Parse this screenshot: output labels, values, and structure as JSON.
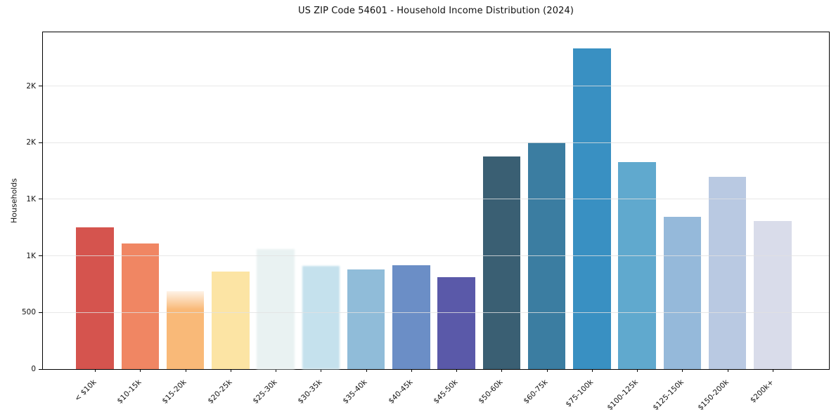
{
  "figure": {
    "title": "US ZIP Code 54601 - Household Income Distribution (2024)"
  },
  "chart_data": {
    "type": "bar",
    "title": "US ZIP Code 54601 - Household Income Distribution (2024)",
    "xlabel": "",
    "ylabel": "Households",
    "ylim": [
      0,
      2975
    ],
    "grid": "horizontal-light-over-bars",
    "legend": "none",
    "categories": [
      "< $10k",
      "$10-15k",
      "$15-20k",
      "$20-25k",
      "$25-30k",
      "$30-35k",
      "$35-40k",
      "$40-45k",
      "$45-50k",
      "$50-60k",
      "$60-75k",
      "$75-100k",
      "$100-125k",
      "$125-150k",
      "$150-200k",
      "$200k+"
    ],
    "values": [
      1250,
      1110,
      690,
      860,
      1060,
      910,
      880,
      920,
      815,
      1880,
      2005,
      2830,
      1830,
      1345,
      1700,
      1310
    ],
    "bar_colors": [
      "#d5544e",
      "#f08663",
      "#f9b978",
      "#fce4a4",
      "#e9f2f2",
      "#c5e1ed",
      "#90bcd9",
      "#6b8ec6",
      "#5a59a9",
      "#3a5f73",
      "#3b7da1",
      "#3990c2",
      "#60a9ce",
      "#95b9da",
      "#b9c9e2",
      "#d9dcea"
    ],
    "soft_bars": {
      "fade_top": [
        2
      ],
      "blur": [
        4,
        5
      ]
    },
    "yticks": [
      {
        "value": 0,
        "label": "0"
      },
      {
        "value": 500,
        "label": "500"
      },
      {
        "value": 1000,
        "label": "1K"
      },
      {
        "value": 1500,
        "label": "1K"
      },
      {
        "value": 2000,
        "label": "2K"
      },
      {
        "value": 2500,
        "label": "2K"
      }
    ],
    "axis_color": "#000000",
    "grid_color": "#e1e1e1",
    "text_color": "#111111"
  }
}
